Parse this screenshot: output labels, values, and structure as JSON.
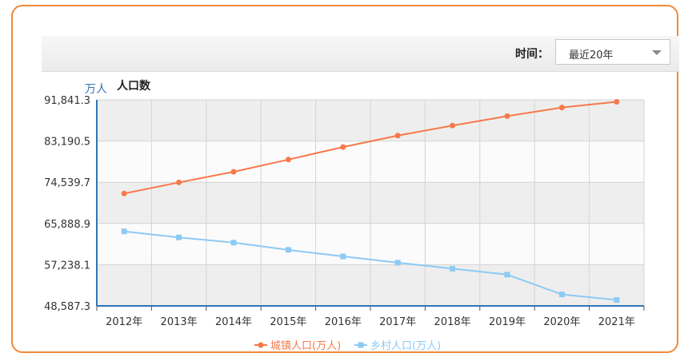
{
  "toolbar": {
    "time_label": "时间：",
    "time_value": "最近20年"
  },
  "chart_data": {
    "type": "line",
    "unit": "万人",
    "title": "人口数",
    "categories": [
      "2012年",
      "2013年",
      "2014年",
      "2015年",
      "2016年",
      "2017年",
      "2018年",
      "2019年",
      "2020年",
      "2021年"
    ],
    "yticks": [
      "48,587.3",
      "57,238.1",
      "65,888.9",
      "74,539.7",
      "83,190.5",
      "91,841.3"
    ],
    "ylim": [
      48587.3,
      91841.3
    ],
    "grid": true,
    "legend_position": "bottom",
    "series": [
      {
        "name": "城镇人口(万人)",
        "color": "#f7784a",
        "marker": "circle",
        "values": [
          72175,
          74502,
          76738,
          79302,
          81924,
          84343,
          86433,
          88426,
          90220,
          91425
        ]
      },
      {
        "name": "乡村人口(万人)",
        "color": "#8dcaf4",
        "marker": "square",
        "values": [
          64222,
          62961,
          61866,
          60346,
          58973,
          57661,
          56401,
          55162,
          50992,
          49835
        ]
      }
    ]
  }
}
